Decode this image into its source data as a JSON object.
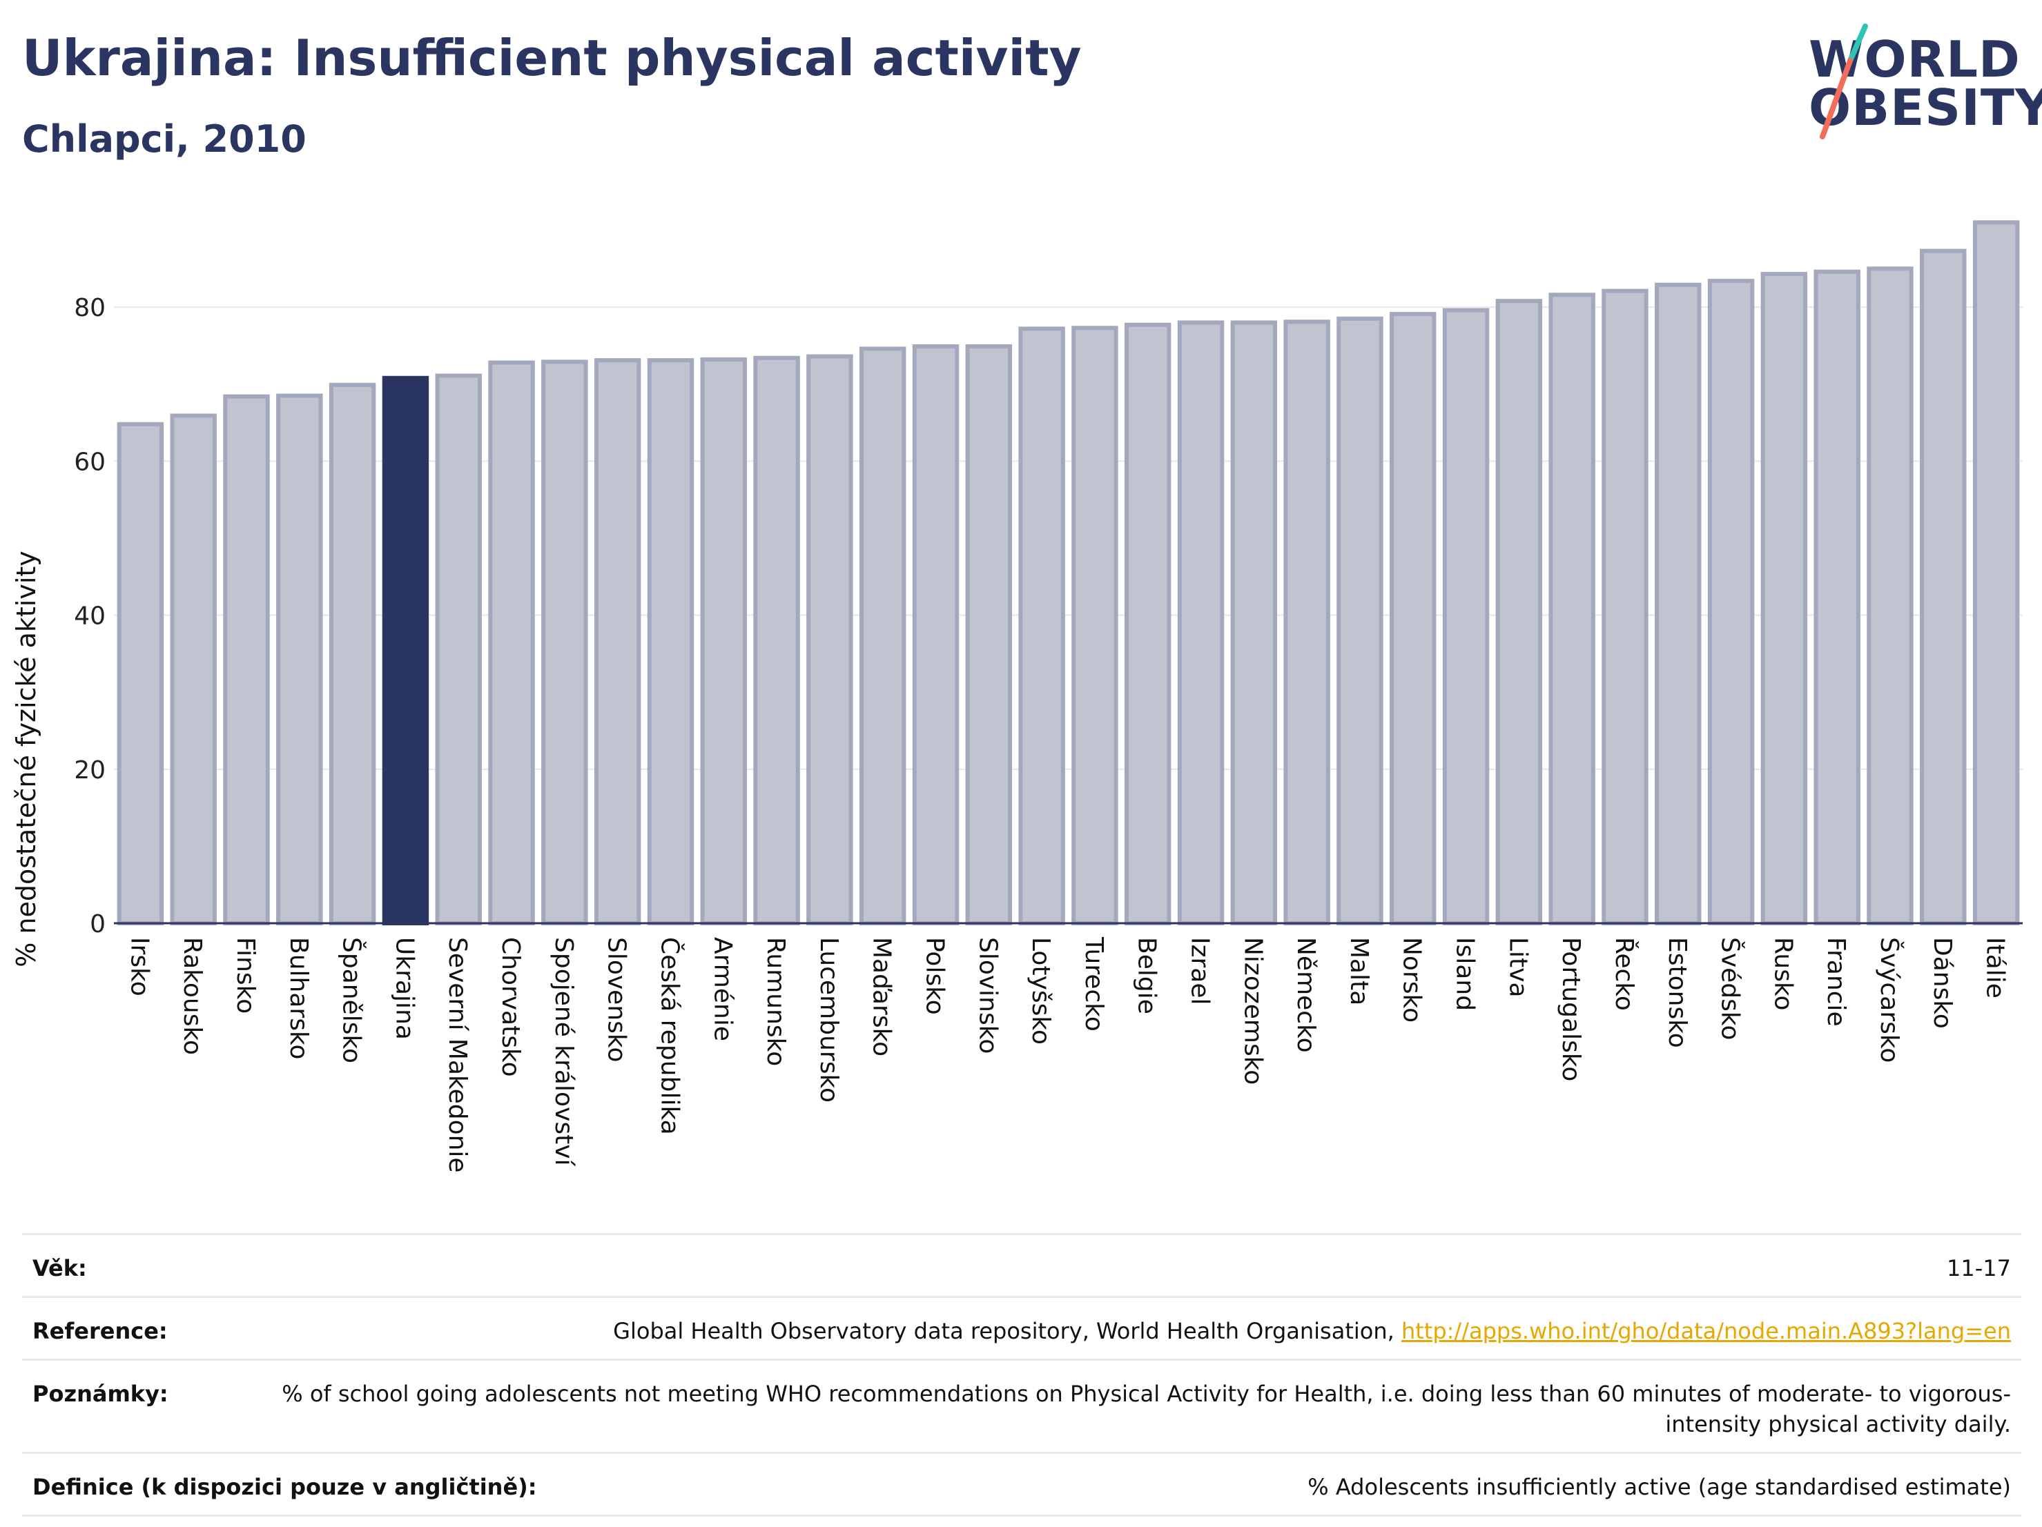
{
  "header": {
    "title": "Ukrajina: Insufficient physical activity",
    "subtitle": "Chlapci, 2010"
  },
  "logo": {
    "line1": "WORLD",
    "line2": "OBESITY",
    "colors": {
      "text": "#2b3561",
      "accent_teal": "#2ec4b6",
      "accent_coral": "#f26b5b"
    }
  },
  "chart_data": {
    "type": "bar",
    "title": "",
    "xlabel": "",
    "ylabel": "% nedostatečné fyzické aktivity",
    "ylim": [
      0,
      93
    ],
    "yticks": [
      0,
      20,
      40,
      60,
      80
    ],
    "grid": true,
    "highlight_category": "Ukrajina",
    "colors": {
      "bar": "#c0c3d0",
      "bar_border": "#a3a8bd",
      "highlight": "#2b3561",
      "grid": "#e6e6ec",
      "axis": "#2b3561"
    },
    "categories": [
      "Irsko",
      "Rakousko",
      "Finsko",
      "Bulharsko",
      "Španělsko",
      "Ukrajina",
      "Severní Makedonie",
      "Chorvatsko",
      "Spojené království",
      "Slovensko",
      "Česká republika",
      "Arménie",
      "Rumunsko",
      "Lucembursko",
      "Maďarsko",
      "Polsko",
      "Slovinsko",
      "Lotyšsko",
      "Turecko",
      "Belgie",
      "Izrael",
      "Nizozemsko",
      "Německo",
      "Malta",
      "Norsko",
      "Island",
      "Litva",
      "Portugalsko",
      "Řecko",
      "Estonsko",
      "Švédsko",
      "Rusko",
      "Francie",
      "Švýcarsko",
      "Dánsko",
      "Itálie"
    ],
    "values": [
      64.8,
      65.9,
      68.4,
      68.5,
      69.9,
      70.8,
      71.1,
      72.8,
      72.9,
      73.1,
      73.1,
      73.2,
      73.4,
      73.6,
      74.6,
      74.9,
      74.9,
      77.2,
      77.3,
      77.7,
      78.0,
      78.0,
      78.1,
      78.5,
      79.1,
      79.6,
      80.8,
      81.6,
      82.1,
      82.9,
      83.4,
      84.3,
      84.6,
      85.0,
      87.3,
      91.0
    ]
  },
  "info": {
    "rows": [
      {
        "key": "Věk:",
        "value": "11-17",
        "link": ""
      },
      {
        "key": "Reference:",
        "value": "Global Health Observatory data repository, World Health Organisation, ",
        "link": "http://apps.who.int/gho/data/node.main.A893?lang=en"
      },
      {
        "key": "Poznámky:",
        "value": "% of school going adolescents not meeting WHO recommendations on Physical Activity for Health, i.e. doing less than 60 minutes of moderate- to vigorous-intensity physical activity daily.",
        "link": ""
      },
      {
        "key": "Definice (k dispozici pouze v angličtině):",
        "value": "% Adolescents insufficiently active (age standardised estimate)",
        "link": ""
      }
    ]
  }
}
